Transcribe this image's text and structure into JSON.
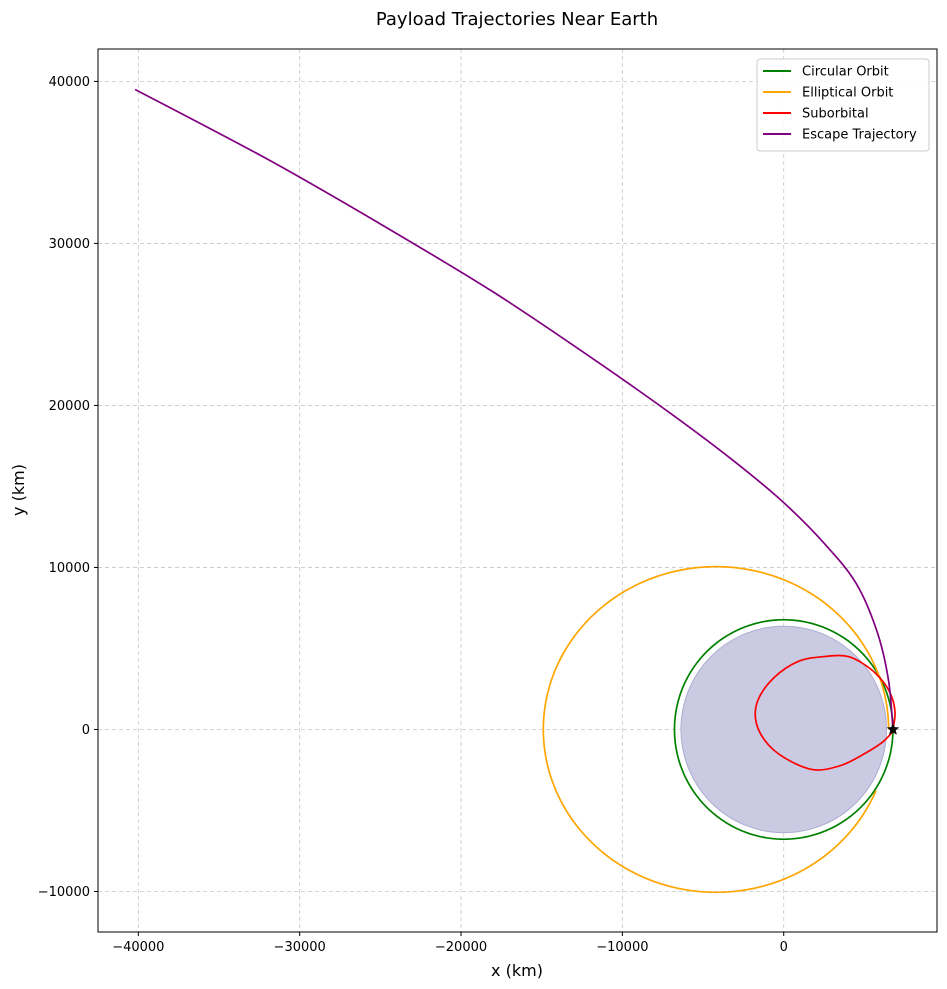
{
  "chart_data": {
    "type": "line",
    "title": "Payload Trajectories Near Earth",
    "xlabel": "x (km)",
    "ylabel": "y (km)",
    "xlim": [
      -42500,
      9500
    ],
    "ylim": [
      -12500,
      42000
    ],
    "xticks": [
      -40000,
      -30000,
      -20000,
      -10000,
      0
    ],
    "yticks": [
      -10000,
      0,
      10000,
      20000,
      30000,
      40000
    ],
    "grid": true,
    "legend_position": "top-right",
    "earth": {
      "center": [
        0,
        0
      ],
      "radius": 6371,
      "color": "#c9c8e2"
    },
    "launch_marker": {
      "x": 6771,
      "y": 0,
      "symbol": "star"
    },
    "series": [
      {
        "name": "Circular Orbit",
        "color": "#008000",
        "kind": "ellipse",
        "center": [
          0,
          0
        ],
        "a": 6771,
        "b": 6771,
        "start_deg": 0,
        "end_deg": 360
      },
      {
        "name": "Elliptical Orbit",
        "color": "#ffa500",
        "kind": "ellipse",
        "center": [
          -4200,
          0
        ],
        "a": 10700,
        "b": 10050,
        "start_deg": 0,
        "end_deg": 338
      },
      {
        "name": "Suborbital",
        "color": "#ff0000",
        "kind": "points",
        "x": [
          6771,
          6900,
          6700,
          6200,
          5300,
          4000,
          2500,
          900,
          -600,
          -1600,
          -1700,
          -900,
          500,
          2000,
          3600,
          5000,
          6100,
          6700,
          6850
        ],
        "y": [
          0,
          1000,
          2000,
          2900,
          3800,
          4500,
          4500,
          4200,
          3200,
          1800,
          400,
          -1000,
          -2000,
          -2500,
          -2200,
          -1500,
          -800,
          -200,
          0
        ]
      },
      {
        "name": "Escape Trajectory",
        "color": "#800080",
        "kind": "points",
        "x": [
          6771,
          6500,
          5800,
          4500,
          2500,
          0,
          -3000,
          -7000,
          -12000,
          -18000,
          -25000,
          -32000,
          -40200
        ],
        "y": [
          0,
          3000,
          6000,
          9000,
          11500,
          14000,
          16500,
          19500,
          23000,
          27000,
          31200,
          35200,
          39500
        ]
      }
    ]
  }
}
